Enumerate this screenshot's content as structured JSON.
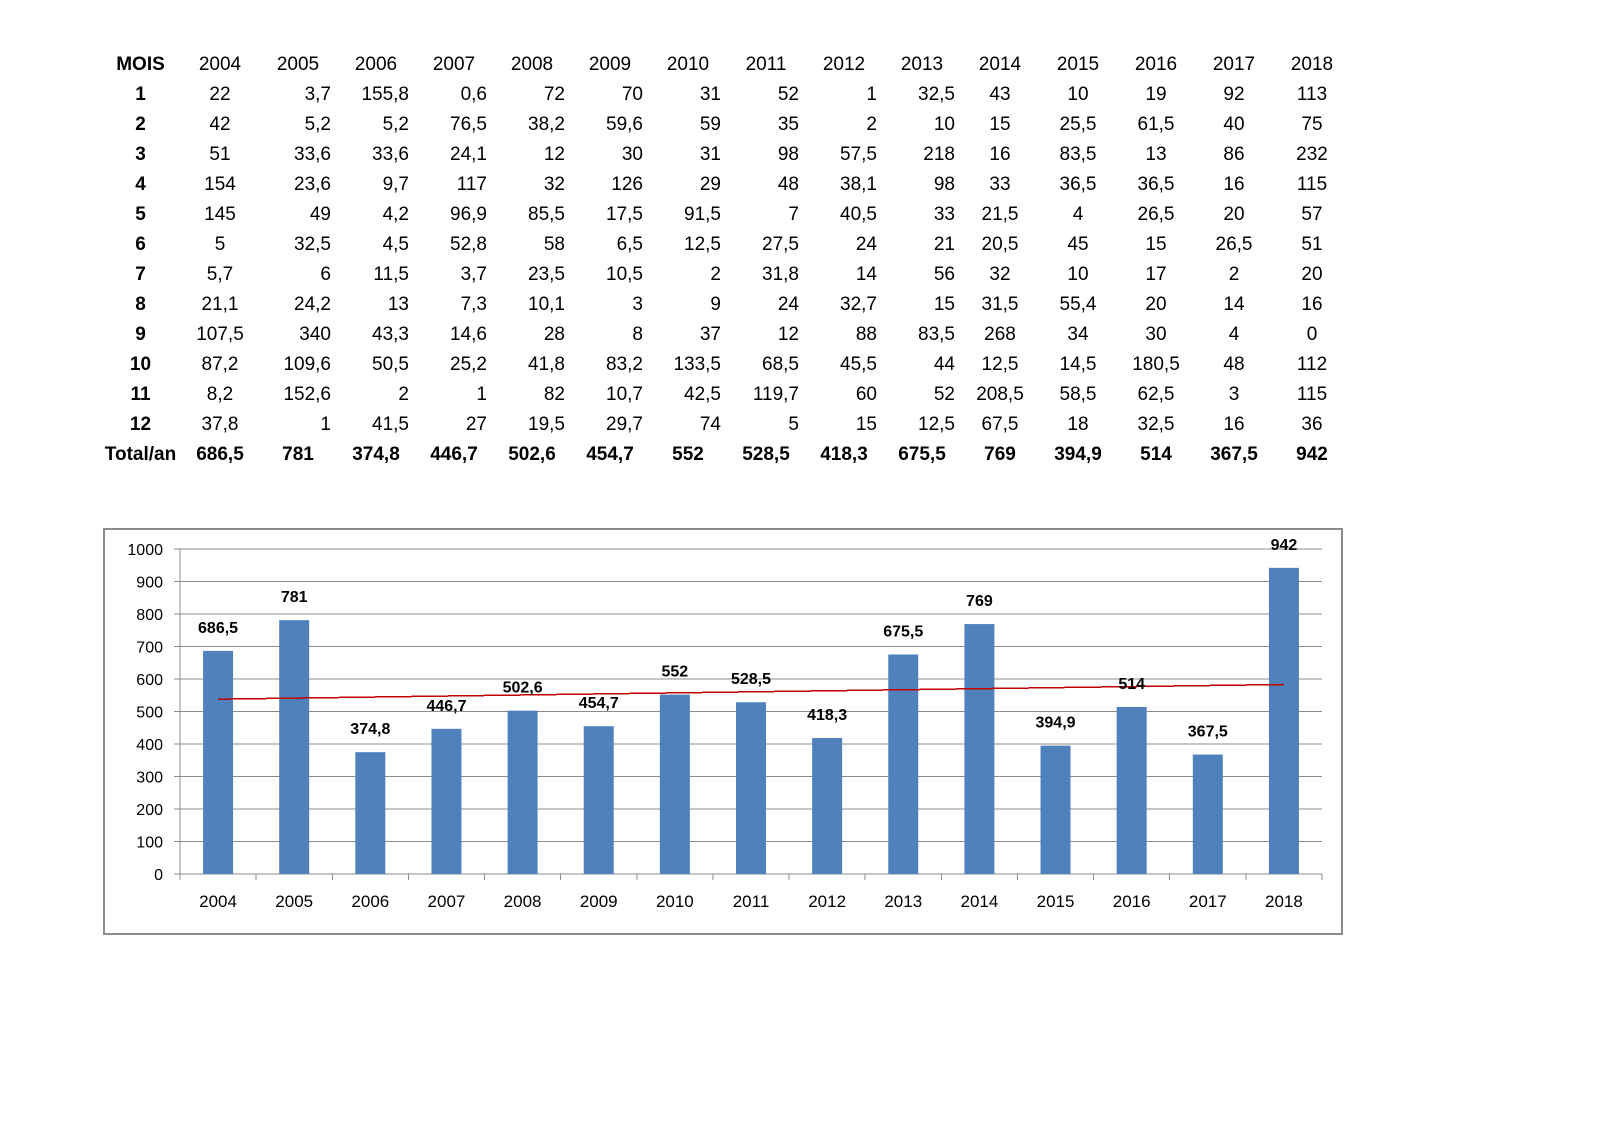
{
  "chart_data": [
    {
      "type": "table",
      "columns": [
        "MOIS",
        "2004",
        "2005",
        "2006",
        "2007",
        "2008",
        "2009",
        "2010",
        "2011",
        "2012",
        "2013",
        "2014",
        "2015",
        "2016",
        "2017",
        "2018"
      ],
      "rows": [
        {
          "label": "1",
          "cells": [
            "22",
            "3,7",
            "155,8",
            "0,6",
            "72",
            "70",
            "31",
            "52",
            "1",
            "32,5",
            "43",
            "10",
            "19",
            "92",
            "113"
          ]
        },
        {
          "label": "2",
          "cells": [
            "42",
            "5,2",
            "5,2",
            "76,5",
            "38,2",
            "59,6",
            "59",
            "35",
            "2",
            "10",
            "15",
            "25,5",
            "61,5",
            "40",
            "75"
          ]
        },
        {
          "label": "3",
          "cells": [
            "51",
            "33,6",
            "33,6",
            "24,1",
            "12",
            "30",
            "31",
            "98",
            "57,5",
            "218",
            "16",
            "83,5",
            "13",
            "86",
            "232"
          ]
        },
        {
          "label": "4",
          "cells": [
            "154",
            "23,6",
            "9,7",
            "117",
            "32",
            "126",
            "29",
            "48",
            "38,1",
            "98",
            "33",
            "36,5",
            "36,5",
            "16",
            "115"
          ]
        },
        {
          "label": "5",
          "cells": [
            "145",
            "49",
            "4,2",
            "96,9",
            "85,5",
            "17,5",
            "91,5",
            "7",
            "40,5",
            "33",
            "21,5",
            "4",
            "26,5",
            "20",
            "57"
          ]
        },
        {
          "label": "6",
          "cells": [
            "5",
            "32,5",
            "4,5",
            "52,8",
            "58",
            "6,5",
            "12,5",
            "27,5",
            "24",
            "21",
            "20,5",
            "45",
            "15",
            "26,5",
            "51"
          ]
        },
        {
          "label": "7",
          "cells": [
            "5,7",
            "6",
            "11,5",
            "3,7",
            "23,5",
            "10,5",
            "2",
            "31,8",
            "14",
            "56",
            "32",
            "10",
            "17",
            "2",
            "20"
          ]
        },
        {
          "label": "8",
          "cells": [
            "21,1",
            "24,2",
            "13",
            "7,3",
            "10,1",
            "3",
            "9",
            "24",
            "32,7",
            "15",
            "31,5",
            "55,4",
            "20",
            "14",
            "16"
          ]
        },
        {
          "label": "9",
          "cells": [
            "107,5",
            "340",
            "43,3",
            "14,6",
            "28",
            "8",
            "37",
            "12",
            "88",
            "83,5",
            "268",
            "34",
            "30",
            "4",
            "0"
          ]
        },
        {
          "label": "10",
          "cells": [
            "87,2",
            "109,6",
            "50,5",
            "25,2",
            "41,8",
            "83,2",
            "133,5",
            "68,5",
            "45,5",
            "44",
            "12,5",
            "14,5",
            "180,5",
            "48",
            "112"
          ]
        },
        {
          "label": "11",
          "cells": [
            "8,2",
            "152,6",
            "2",
            "1",
            "82",
            "10,7",
            "42,5",
            "119,7",
            "60",
            "52",
            "208,5",
            "58,5",
            "62,5",
            "3",
            "115"
          ]
        },
        {
          "label": "12",
          "cells": [
            "37,8",
            "1",
            "41,5",
            "27",
            "19,5",
            "29,7",
            "74",
            "5",
            "15",
            "12,5",
            "67,5",
            "18",
            "32,5",
            "16",
            "36"
          ]
        }
      ],
      "total": {
        "label": "Total/an",
        "cells": [
          "686,5",
          "781",
          "374,8",
          "446,7",
          "502,6",
          "454,7",
          "552",
          "528,5",
          "418,3",
          "675,5",
          "769",
          "394,9",
          "514",
          "367,5",
          "942"
        ]
      }
    },
    {
      "type": "bar",
      "categories": [
        "2004",
        "2005",
        "2006",
        "2007",
        "2008",
        "2009",
        "2010",
        "2011",
        "2012",
        "2013",
        "2014",
        "2015",
        "2016",
        "2017",
        "2018"
      ],
      "values": [
        686.5,
        781,
        374.8,
        446.7,
        502.6,
        454.7,
        552,
        528.5,
        418.3,
        675.5,
        769,
        394.9,
        514,
        367.5,
        942
      ],
      "data_labels": [
        "686,5",
        "781",
        "374,8",
        "446,7",
        "502,6",
        "454,7",
        "552",
        "528,5",
        "418,3",
        "675,5",
        "769",
        "394,9",
        "514",
        "367,5",
        "942"
      ],
      "ylim": [
        0,
        1000
      ],
      "yticks": [
        0,
        100,
        200,
        300,
        400,
        500,
        600,
        700,
        800,
        900,
        1000
      ],
      "grid": true,
      "trendline": "linear",
      "colors": {
        "bar": "#4F81BD",
        "trendline": "#C00000",
        "grid": "#8C8C8C"
      }
    }
  ]
}
